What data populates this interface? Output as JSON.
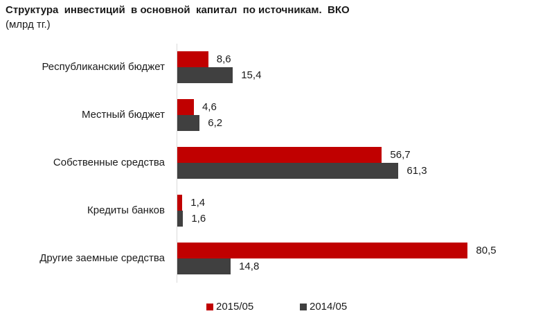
{
  "title": "Структура  инвестиций  в основной  капитал  по источникам.  ВКО",
  "subtitle": "(млрд тг.)",
  "colors": {
    "s2015": "#c00000",
    "s2014": "#404040"
  },
  "legend": [
    {
      "label": "2015/05",
      "color": "#c00000"
    },
    {
      "label": "2014/05",
      "color": "#404040"
    }
  ],
  "chart_data": {
    "type": "bar",
    "orientation": "horizontal",
    "title": "Структура инвестиций в основной капитал по источникам. ВКО",
    "subtitle": "(млрд тг.)",
    "categories": [
      "Республиканский бюджет",
      "Местный бюджет",
      "Собственные средства",
      "Кредиты банков",
      "Другие заемные средства"
    ],
    "series": [
      {
        "name": "2015/05",
        "color": "#c00000",
        "values": [
          8.6,
          4.6,
          56.7,
          1.4,
          80.5
        ],
        "labels": [
          "8,6",
          "4,6",
          "56,7",
          "1,4",
          "80,5"
        ]
      },
      {
        "name": "2014/05",
        "color": "#404040",
        "values": [
          15.4,
          6.2,
          61.3,
          1.6,
          14.8
        ],
        "labels": [
          "15,4",
          "6,2",
          "61,3",
          "1,6",
          "14,8"
        ]
      }
    ],
    "xlabel": "",
    "ylabel": "",
    "grid": false,
    "legend_position": "bottom"
  }
}
